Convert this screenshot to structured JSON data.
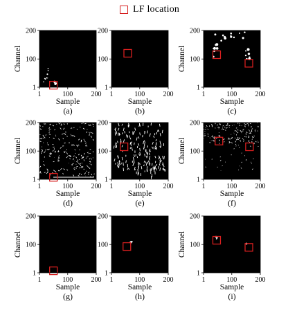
{
  "legend": {
    "label": "LF location",
    "marker_color": "#d61f1f"
  },
  "axes": {
    "xlabel": "Sample",
    "ylabel": "Channel",
    "xticks": [
      "1",
      "100",
      "200"
    ],
    "yticks": [
      "1",
      "100",
      "200"
    ],
    "range": [
      1,
      200
    ]
  },
  "colors": {
    "background": "#000000",
    "signal": "#ffffff",
    "marker": "#d61f1f"
  },
  "panels": [
    {
      "id": "a",
      "caption": "(a)",
      "pattern": "sparse-corner",
      "markers": [
        {
          "sample": 50,
          "channel": 8
        }
      ]
    },
    {
      "id": "b",
      "caption": "(b)",
      "pattern": "empty",
      "markers": [
        {
          "sample": 58,
          "channel": 120
        }
      ]
    },
    {
      "id": "c",
      "caption": "(c)",
      "pattern": "two-clusters",
      "markers": [
        {
          "sample": 47,
          "channel": 115
        },
        {
          "sample": 160,
          "channel": 85
        }
      ]
    },
    {
      "id": "d",
      "caption": "(d)",
      "pattern": "dense-noise",
      "markers": [
        {
          "sample": 50,
          "channel": 8
        }
      ]
    },
    {
      "id": "e",
      "caption": "(e)",
      "pattern": "wavy-noise",
      "markers": [
        {
          "sample": 45,
          "channel": 115
        }
      ]
    },
    {
      "id": "f",
      "caption": "(f)",
      "pattern": "scattered-noise",
      "markers": [
        {
          "sample": 55,
          "channel": 135
        },
        {
          "sample": 162,
          "channel": 115
        }
      ]
    },
    {
      "id": "g",
      "caption": "(g)",
      "pattern": "empty",
      "markers": [
        {
          "sample": 50,
          "channel": 8
        }
      ]
    },
    {
      "id": "h",
      "caption": "(h)",
      "pattern": "single-spot",
      "markers": [
        {
          "sample": 55,
          "channel": 93
        }
      ]
    },
    {
      "id": "i",
      "caption": "(i)",
      "pattern": "two-spots",
      "markers": [
        {
          "sample": 47,
          "channel": 115
        },
        {
          "sample": 160,
          "channel": 90
        }
      ]
    }
  ]
}
